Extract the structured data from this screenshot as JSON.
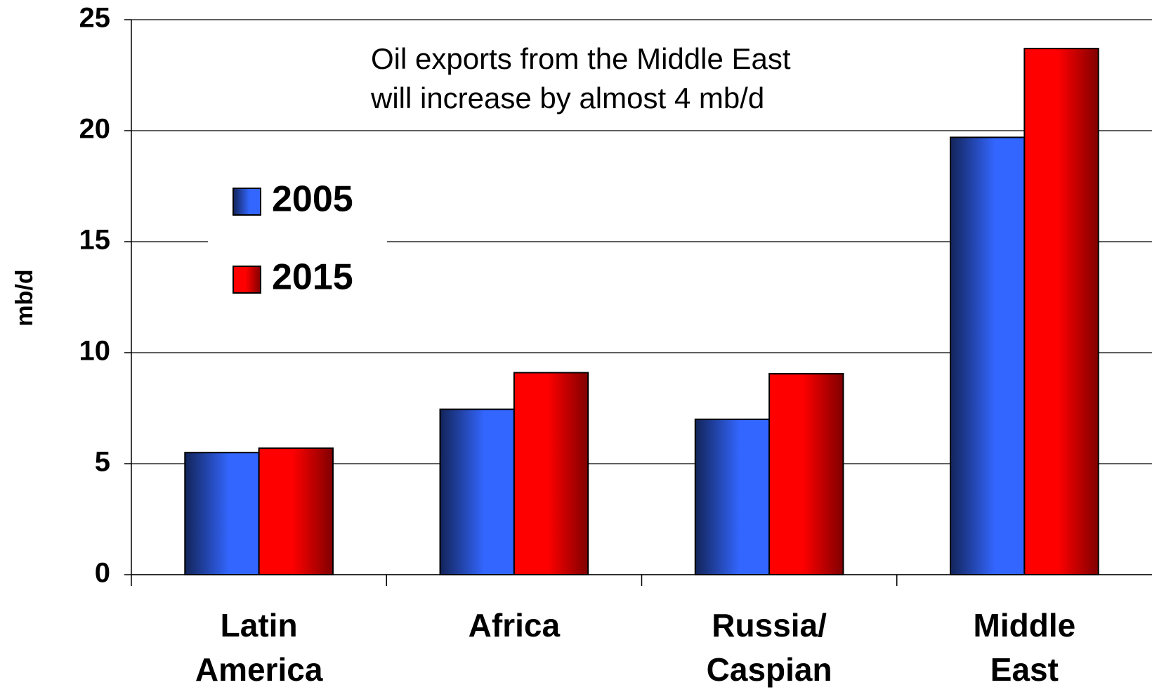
{
  "chart_data": {
    "type": "bar",
    "annotation": [
      "Oil exports from the Middle East",
      "will increase by almost 4 mb/d"
    ],
    "y_label": "mb/d",
    "categories": [
      "Latin America",
      "Africa",
      "Russia/ Caspian",
      "Middle East"
    ],
    "series": [
      {
        "name": "2005",
        "color": "#3366ff",
        "values": [
          5.5,
          7.45,
          7.0,
          19.7
        ]
      },
      {
        "name": "2015",
        "color": "#ff0000",
        "values": [
          5.7,
          9.1,
          9.05,
          23.7
        ]
      }
    ],
    "ylim": [
      0,
      25
    ],
    "yticks": [
      0,
      5,
      10,
      15,
      20,
      25
    ],
    "grid": true,
    "legend": "upper-left"
  }
}
